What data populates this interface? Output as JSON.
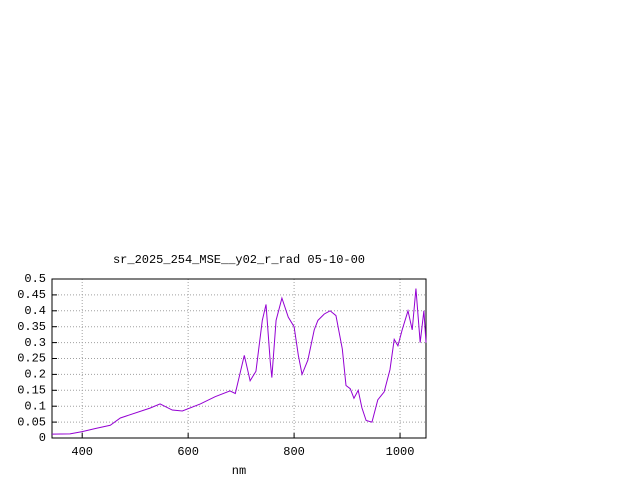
{
  "chart_data": {
    "type": "line",
    "title": "sr_2025_254_MSE__y02_r_rad 05-10-00",
    "x_label": "nm",
    "x": [
      343,
      377,
      400,
      425,
      453,
      472,
      528,
      547,
      570,
      589,
      623,
      651,
      679,
      689,
      706,
      717,
      728,
      740,
      747,
      755,
      758,
      766,
      777,
      789,
      800,
      808,
      815,
      826,
      838,
      845,
      857,
      868,
      879,
      891,
      898,
      906,
      913,
      921,
      928,
      936,
      947,
      958,
      970,
      981,
      989,
      996,
      1004,
      1015,
      1023,
      1030,
      1038,
      1045,
      1049
    ],
    "series": [
      {
        "color": "#9400d3",
        "values": [
          0.012,
          0.013,
          0.02,
          0.03,
          0.04,
          0.063,
          0.094,
          0.107,
          0.088,
          0.085,
          0.107,
          0.13,
          0.148,
          0.14,
          0.26,
          0.18,
          0.21,
          0.37,
          0.42,
          0.24,
          0.19,
          0.37,
          0.44,
          0.38,
          0.35,
          0.26,
          0.2,
          0.245,
          0.34,
          0.37,
          0.39,
          0.4,
          0.385,
          0.28,
          0.165,
          0.155,
          0.125,
          0.15,
          0.095,
          0.055,
          0.05,
          0.12,
          0.145,
          0.215,
          0.31,
          0.29,
          0.34,
          0.4,
          0.34,
          0.47,
          0.3,
          0.4,
          0.3
        ]
      }
    ],
    "xlim": [
      343,
      1049
    ],
    "xticks": [
      400,
      600,
      800,
      1000
    ],
    "ylim": [
      0,
      0.5
    ],
    "yticks": [
      0,
      0.05,
      0.1,
      0.15,
      0.2,
      0.25,
      0.3,
      0.35,
      0.4,
      0.45,
      0.5
    ],
    "grid": true
  }
}
